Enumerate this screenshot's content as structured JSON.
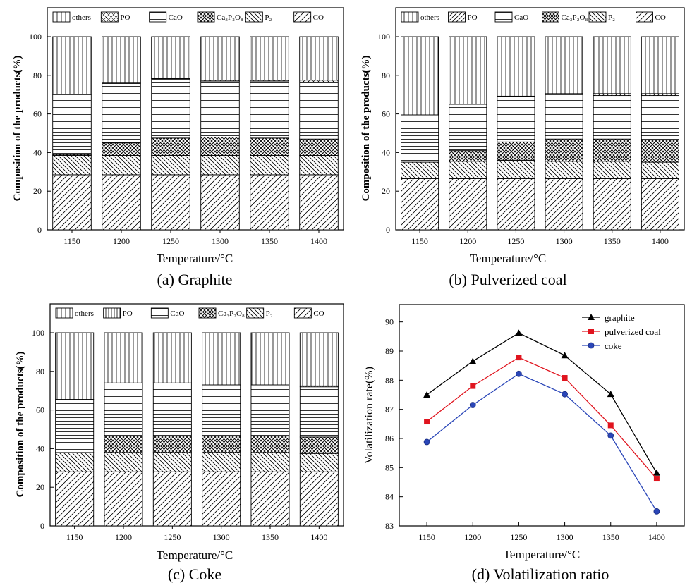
{
  "chart_data": [
    {
      "type": "bar",
      "caption": "(a) Graphite",
      "xlabel": "Temperature/°C",
      "ylabel": "Composition of the products(%)",
      "ylim": [
        0,
        100
      ],
      "yticks": [
        0,
        20,
        40,
        60,
        80,
        100
      ],
      "categories": [
        "1150",
        "1200",
        "1250",
        "1300",
        "1350",
        "1400"
      ],
      "stacked": true,
      "legend_position": "top",
      "legend": [
        {
          "label": "others",
          "pattern": "vertical"
        },
        {
          "label": "PO",
          "pattern": "crosshatch"
        },
        {
          "label": "CaO",
          "pattern": "horizontal"
        },
        {
          "label": "Ca₃P₂O₈",
          "pattern": "dense-crosshatch"
        },
        {
          "label": "P₂",
          "pattern": "backslash"
        },
        {
          "label": "CO",
          "pattern": "slash"
        }
      ],
      "series": [
        {
          "name": "CO",
          "pattern": "slash",
          "values": [
            28.5,
            28.5,
            28.5,
            28.5,
            28.5,
            28.5
          ]
        },
        {
          "name": "P₂",
          "pattern": "backslash",
          "values": [
            10,
            10,
            10,
            10,
            10,
            10
          ]
        },
        {
          "name": "Ca₃P₂O₈",
          "pattern": "dense-crosshatch",
          "values": [
            0.5,
            6.5,
            9,
            9.5,
            9,
            8.5
          ]
        },
        {
          "name": "CaO",
          "pattern": "horizontal",
          "values": [
            31,
            30.8,
            30.8,
            29,
            29.5,
            29.5
          ]
        },
        {
          "name": "PO",
          "pattern": "crosshatch",
          "values": [
            0,
            0.2,
            0.2,
            0.5,
            0.5,
            1
          ]
        },
        {
          "name": "others",
          "pattern": "vertical",
          "values": [
            30,
            24,
            21.5,
            22.5,
            22.5,
            22.5
          ]
        }
      ]
    },
    {
      "type": "bar",
      "caption": "(b) Pulverized coal",
      "xlabel": "Temperature/°C",
      "ylabel": "Composition of the products(%)",
      "ylim": [
        0,
        100
      ],
      "yticks": [
        0,
        20,
        40,
        60,
        80,
        100
      ],
      "categories": [
        "1150",
        "1200",
        "1250",
        "1300",
        "1350",
        "1400"
      ],
      "stacked": true,
      "legend_position": "top",
      "legend": [
        {
          "label": "others",
          "pattern": "vertical"
        },
        {
          "label": "PO",
          "pattern": "slash-wide"
        },
        {
          "label": "CaO",
          "pattern": "horizontal"
        },
        {
          "label": "Ca₃P₂O₈",
          "pattern": "dense-crosshatch"
        },
        {
          "label": "P₂",
          "pattern": "backslash"
        },
        {
          "label": "CO",
          "pattern": "slash"
        }
      ],
      "series": [
        {
          "name": "CO",
          "pattern": "slash",
          "values": [
            26.5,
            26.5,
            26.5,
            26.5,
            26.5,
            26.5
          ]
        },
        {
          "name": "P₂",
          "pattern": "backslash",
          "values": [
            8.5,
            9,
            9.5,
            9,
            9,
            8.5
          ]
        },
        {
          "name": "Ca₃P₂O₈",
          "pattern": "dense-crosshatch",
          "values": [
            0,
            5.5,
            9.5,
            11.5,
            11.5,
            11.5
          ]
        },
        {
          "name": "CaO",
          "pattern": "horizontal",
          "values": [
            24.5,
            24,
            23.5,
            23,
            22.5,
            23
          ]
        },
        {
          "name": "PO",
          "pattern": "slash-wide",
          "values": [
            0,
            0,
            0.2,
            0.5,
            1,
            1
          ]
        },
        {
          "name": "others",
          "pattern": "vertical",
          "values": [
            40.5,
            35,
            30.8,
            29.5,
            29.5,
            29.5
          ]
        }
      ]
    },
    {
      "type": "bar",
      "caption": "(c) Coke",
      "xlabel": "Temperature/°C",
      "ylabel": "Composition of the products(%)",
      "ylim": [
        0,
        100
      ],
      "yticks": [
        0,
        20,
        40,
        60,
        80,
        100
      ],
      "categories": [
        "1150",
        "1200",
        "1250",
        "1300",
        "1350",
        "1400"
      ],
      "stacked": true,
      "legend_position": "top",
      "legend": [
        {
          "label": "others",
          "pattern": "vertical"
        },
        {
          "label": "PO",
          "pattern": "vertical-dense"
        },
        {
          "label": "CaO",
          "pattern": "horizontal"
        },
        {
          "label": "Ca₃P₂O₈",
          "pattern": "dense-crosshatch"
        },
        {
          "label": "P₂",
          "pattern": "backslash"
        },
        {
          "label": "CO",
          "pattern": "slash"
        }
      ],
      "series": [
        {
          "name": "CO",
          "pattern": "slash",
          "values": [
            28,
            28,
            28,
            28,
            28,
            28
          ]
        },
        {
          "name": "P₂",
          "pattern": "backslash",
          "values": [
            10,
            10,
            10,
            10,
            10,
            9.5
          ]
        },
        {
          "name": "Ca₃P₂O₈",
          "pattern": "dense-crosshatch",
          "values": [
            0,
            8.5,
            8.5,
            8.5,
            8.5,
            8.5
          ]
        },
        {
          "name": "CaO",
          "pattern": "horizontal",
          "values": [
            27.5,
            27.5,
            27.5,
            26.5,
            26.5,
            26
          ]
        },
        {
          "name": "PO",
          "pattern": "vertical-dense",
          "values": [
            0,
            0,
            0,
            0,
            0,
            0.5
          ]
        },
        {
          "name": "others",
          "pattern": "vertical",
          "values": [
            34.5,
            26,
            26,
            27,
            27,
            27.5
          ]
        }
      ]
    },
    {
      "type": "line",
      "caption": "(d) Volatilization ratio",
      "xlabel": "Temperature/°C",
      "ylabel": "Volatilization rate(%)",
      "x": [
        1150,
        1200,
        1250,
        1300,
        1350,
        1400
      ],
      "xticks": [
        "1150",
        "1200",
        "1250",
        "1300",
        "1350",
        "1400"
      ],
      "xlim": [
        1120,
        1430
      ],
      "ylim": [
        83,
        90.5
      ],
      "yticks": [
        83,
        84,
        85,
        86,
        87,
        88,
        89,
        90
      ],
      "legend_position": "top-right",
      "series": [
        {
          "name": "graphite",
          "color": "#000000",
          "marker": "triangle",
          "values": [
            87.5,
            88.65,
            89.62,
            88.85,
            87.52,
            84.82
          ]
        },
        {
          "name": "pulverized coal",
          "color": "#e0141e",
          "marker": "square",
          "values": [
            86.58,
            87.8,
            88.78,
            88.08,
            86.45,
            84.62
          ]
        },
        {
          "name": "coke",
          "color": "#2a46b8",
          "marker": "circle",
          "values": [
            85.88,
            87.15,
            88.22,
            87.52,
            86.1,
            83.5
          ]
        }
      ]
    }
  ]
}
